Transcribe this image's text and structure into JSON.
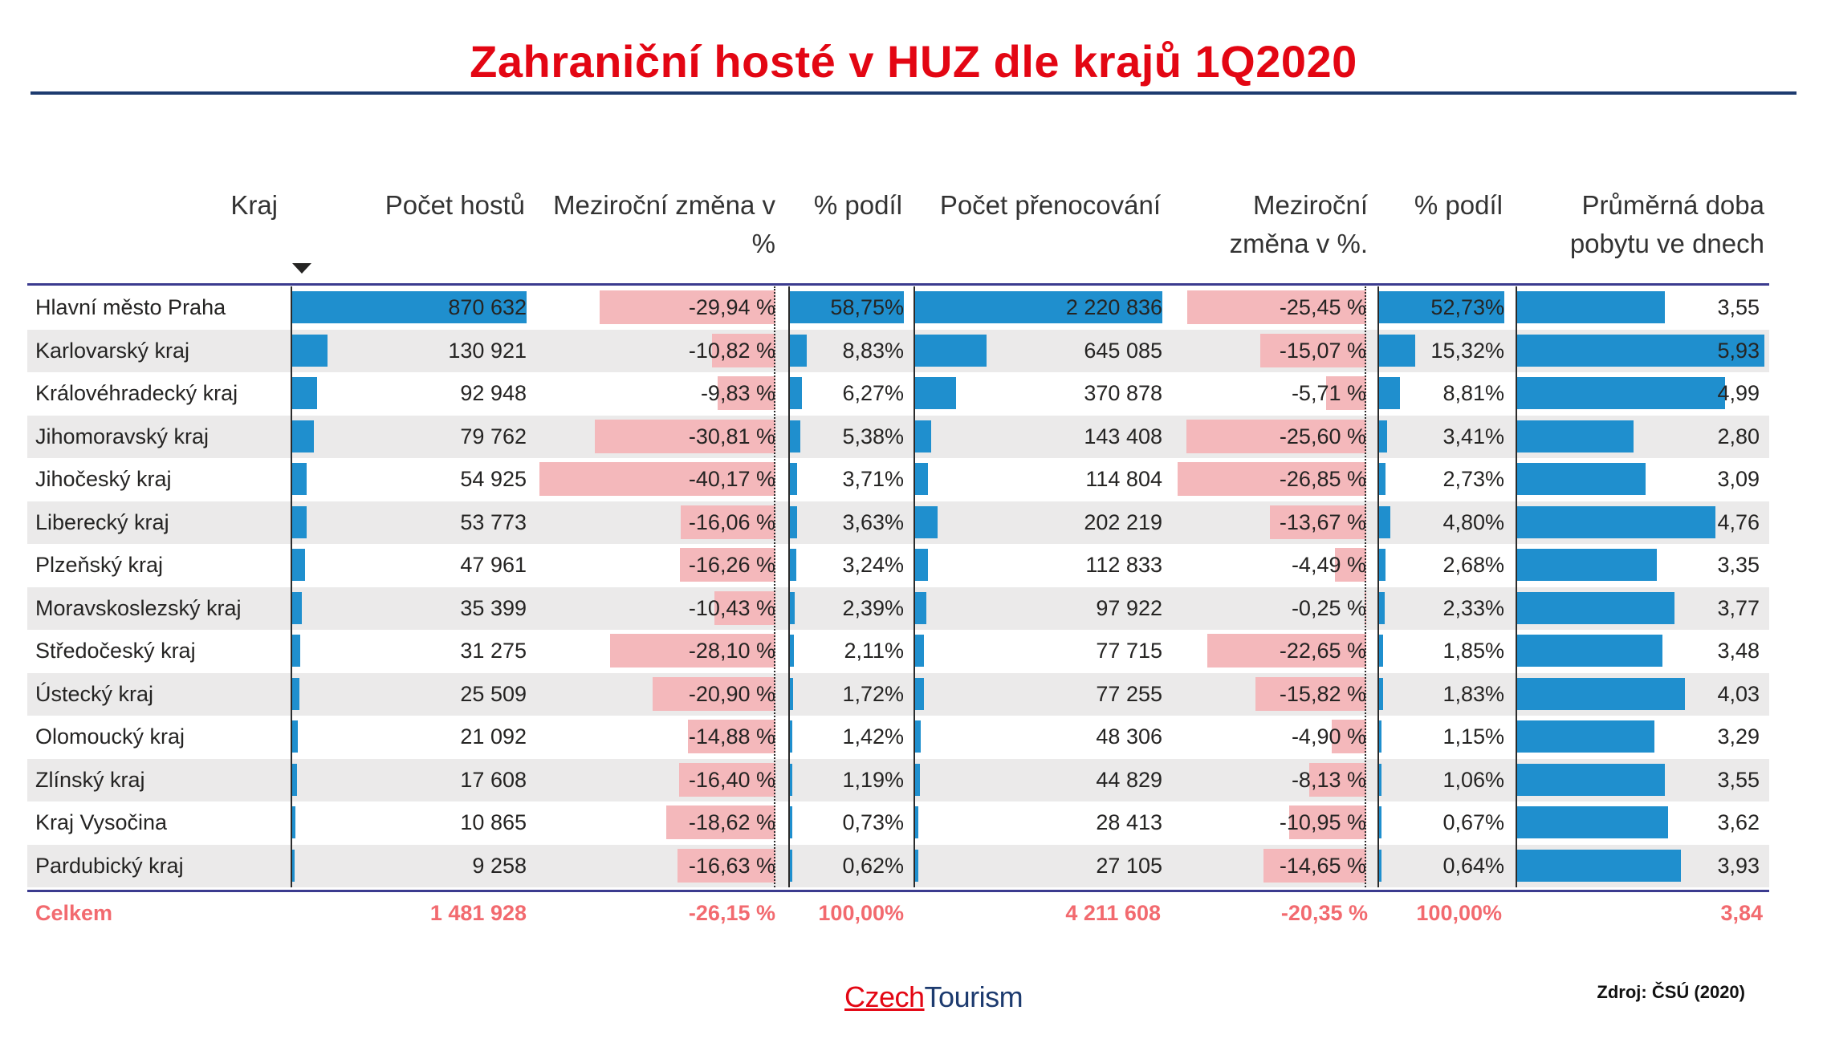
{
  "title": "Zahraniční hosté v HUZ dle krajů 1Q2020",
  "colors": {
    "title": "#e30613",
    "rule": "#1d3b6f",
    "bar_blue": "#1f8fce",
    "bar_pink": "#f4b8bb",
    "total_text": "#f26a6f",
    "row_alt": "#ebeaea"
  },
  "headers": {
    "kraj": "Kraj",
    "pocet_hostu": "Počet hostů",
    "zmena_hoste": "Meziroční změna v %",
    "podil_hoste": "% podíl",
    "pocet_prenocovani": "Počet přenocování",
    "zmena_prenocovani": "Meziroční změna v %.",
    "podil_prenocovani": "% podíl",
    "prumerna_doba": "Průměrná doba pobytu ve dnech"
  },
  "total": {
    "label": "Celkem",
    "guests": "1 481 928",
    "guests_change": "-26,15 %",
    "guests_share": "100,00%",
    "nights": "4 211 608",
    "nights_change": "-20,35 %",
    "nights_share": "100,00%",
    "avg_stay": "3,84"
  },
  "logo": {
    "part1": "Czech",
    "part2": "Tourism"
  },
  "source": "Zdroj: ČSÚ (2020)",
  "chart_data": {
    "type": "table",
    "title": "Zahraniční hosté v HUZ dle krajů 1Q2020",
    "sorted_by": "Počet hostů (descending)",
    "columns": [
      "Kraj",
      "Počet hostů",
      "Meziroční změna v %",
      "% podíl",
      "Počet přenocování",
      "Meziroční změna v %.",
      "% podíl",
      "Průměrná doba pobytu ve dnech"
    ],
    "rows": [
      {
        "name": "Hlavní město Praha",
        "guests": "870 632",
        "guests_v": 870632,
        "gchange": "-29,94 %",
        "gchange_v": -29.94,
        "gshare": "58,75%",
        "gshare_v": 58.75,
        "nights": "2 220 836",
        "nights_v": 2220836,
        "nchange": "-25,45 %",
        "nchange_v": -25.45,
        "nshare": "52,73%",
        "nshare_v": 52.73,
        "stay": "3,55",
        "stay_v": 3.55
      },
      {
        "name": "Karlovarský kraj",
        "guests": "130 921",
        "guests_v": 130921,
        "gchange": "-10,82 %",
        "gchange_v": -10.82,
        "gshare": "8,83%",
        "gshare_v": 8.83,
        "nights": "645 085",
        "nights_v": 645085,
        "nchange": "-15,07 %",
        "nchange_v": -15.07,
        "nshare": "15,32%",
        "nshare_v": 15.32,
        "stay": "5,93",
        "stay_v": 5.93
      },
      {
        "name": "Královéhradecký kraj",
        "guests": "92 948",
        "guests_v": 92948,
        "gchange": "-9,83 %",
        "gchange_v": -9.83,
        "gshare": "6,27%",
        "gshare_v": 6.27,
        "nights": "370 878",
        "nights_v": 370878,
        "nchange": "-5,71 %",
        "nchange_v": -5.71,
        "nshare": "8,81%",
        "nshare_v": 8.81,
        "stay": "4,99",
        "stay_v": 4.99
      },
      {
        "name": "Jihomoravský kraj",
        "guests": "79 762",
        "guests_v": 79762,
        "gchange": "-30,81 %",
        "gchange_v": -30.81,
        "gshare": "5,38%",
        "gshare_v": 5.38,
        "nights": "143 408",
        "nights_v": 143408,
        "nchange": "-25,60 %",
        "nchange_v": -25.6,
        "nshare": "3,41%",
        "nshare_v": 3.41,
        "stay": "2,80",
        "stay_v": 2.8
      },
      {
        "name": "Jihočeský kraj",
        "guests": "54 925",
        "guests_v": 54925,
        "gchange": "-40,17 %",
        "gchange_v": -40.17,
        "gshare": "3,71%",
        "gshare_v": 3.71,
        "nights": "114 804",
        "nights_v": 114804,
        "nchange": "-26,85 %",
        "nchange_v": -26.85,
        "nshare": "2,73%",
        "nshare_v": 2.73,
        "stay": "3,09",
        "stay_v": 3.09
      },
      {
        "name": "Liberecký kraj",
        "guests": "53 773",
        "guests_v": 53773,
        "gchange": "-16,06 %",
        "gchange_v": -16.06,
        "gshare": "3,63%",
        "gshare_v": 3.63,
        "nights": "202 219",
        "nights_v": 202219,
        "nchange": "-13,67 %",
        "nchange_v": -13.67,
        "nshare": "4,80%",
        "nshare_v": 4.8,
        "stay": "4,76",
        "stay_v": 4.76
      },
      {
        "name": "Plzeňský kraj",
        "guests": "47 961",
        "guests_v": 47961,
        "gchange": "-16,26 %",
        "gchange_v": -16.26,
        "gshare": "3,24%",
        "gshare_v": 3.24,
        "nights": "112 833",
        "nights_v": 112833,
        "nchange": "-4,49 %",
        "nchange_v": -4.49,
        "nshare": "2,68%",
        "nshare_v": 2.68,
        "stay": "3,35",
        "stay_v": 3.35
      },
      {
        "name": "Moravskoslezský kraj",
        "guests": "35 399",
        "guests_v": 35399,
        "gchange": "-10,43 %",
        "gchange_v": -10.43,
        "gshare": "2,39%",
        "gshare_v": 2.39,
        "nights": "97 922",
        "nights_v": 97922,
        "nchange": "-0,25 %",
        "nchange_v": -0.25,
        "nshare": "2,33%",
        "nshare_v": 2.33,
        "stay": "3,77",
        "stay_v": 3.77
      },
      {
        "name": "Středočeský kraj",
        "guests": "31 275",
        "guests_v": 31275,
        "gchange": "-28,10 %",
        "gchange_v": -28.1,
        "gshare": "2,11%",
        "gshare_v": 2.11,
        "nights": "77 715",
        "nights_v": 77715,
        "nchange": "-22,65 %",
        "nchange_v": -22.65,
        "nshare": "1,85%",
        "nshare_v": 1.85,
        "stay": "3,48",
        "stay_v": 3.48
      },
      {
        "name": "Ústecký kraj",
        "guests": "25 509",
        "guests_v": 25509,
        "gchange": "-20,90 %",
        "gchange_v": -20.9,
        "gshare": "1,72%",
        "gshare_v": 1.72,
        "nights": "77 255",
        "nights_v": 77255,
        "nchange": "-15,82 %",
        "nchange_v": -15.82,
        "nshare": "1,83%",
        "nshare_v": 1.83,
        "stay": "4,03",
        "stay_v": 4.03
      },
      {
        "name": "Olomoucký kraj",
        "guests": "21 092",
        "guests_v": 21092,
        "gchange": "-14,88 %",
        "gchange_v": -14.88,
        "gshare": "1,42%",
        "gshare_v": 1.42,
        "nights": "48 306",
        "nights_v": 48306,
        "nchange": "-4,90 %",
        "nchange_v": -4.9,
        "nshare": "1,15%",
        "nshare_v": 1.15,
        "stay": "3,29",
        "stay_v": 3.29
      },
      {
        "name": "Zlínský kraj",
        "guests": "17 608",
        "guests_v": 17608,
        "gchange": "-16,40 %",
        "gchange_v": -16.4,
        "gshare": "1,19%",
        "gshare_v": 1.19,
        "nights": "44 829",
        "nights_v": 44829,
        "nchange": "-8,13 %",
        "nchange_v": -8.13,
        "nshare": "1,06%",
        "nshare_v": 1.06,
        "stay": "3,55",
        "stay_v": 3.55
      },
      {
        "name": "Kraj Vysočina",
        "guests": "10 865",
        "guests_v": 10865,
        "gchange": "-18,62 %",
        "gchange_v": -18.62,
        "gshare": "0,73%",
        "gshare_v": 0.73,
        "nights": "28 413",
        "nights_v": 28413,
        "nchange": "-10,95 %",
        "nchange_v": -10.95,
        "nshare": "0,67%",
        "nshare_v": 0.67,
        "stay": "3,62",
        "stay_v": 3.62
      },
      {
        "name": "Pardubický kraj",
        "guests": "9 258",
        "guests_v": 9258,
        "gchange": "-16,63 %",
        "gchange_v": -16.63,
        "gshare": "0,62%",
        "gshare_v": 0.62,
        "nights": "27 105",
        "nights_v": 27105,
        "nchange": "-14,65 %",
        "nchange_v": -14.65,
        "nshare": "0,64%",
        "nshare_v": 0.64,
        "stay": "3,93",
        "stay_v": 3.93
      }
    ]
  }
}
